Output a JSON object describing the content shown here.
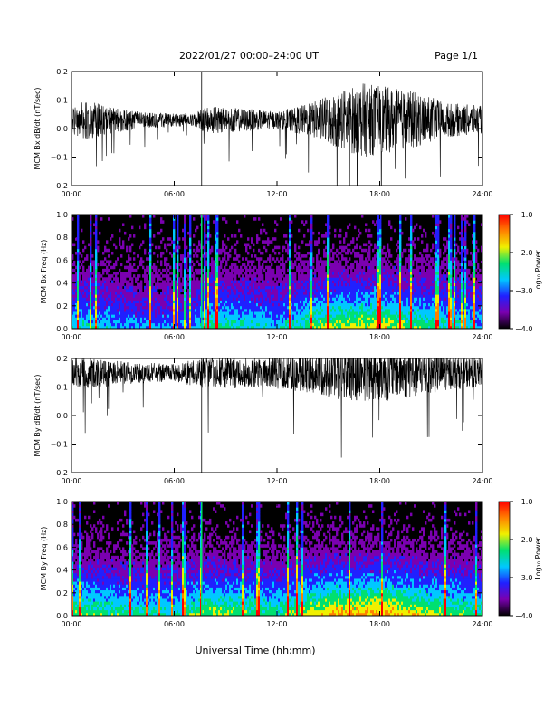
{
  "header": {
    "title": "2022/01/27  00:00–24:00 UT",
    "page": "Page 1/1"
  },
  "xlabel": "Universal Time (hh:mm)",
  "x_ticks": [
    "00:00",
    "06:00",
    "12:00",
    "18:00",
    "24:00"
  ],
  "colorbar": {
    "label": "Log₁₀ Power",
    "ticks": [
      "−1.0",
      "−2.0",
      "−3.0",
      "−4.0"
    ],
    "range": [
      -4.0,
      -1.0
    ],
    "colors": [
      "#000000",
      "#7a00b0",
      "#2020ff",
      "#00c8ff",
      "#00e070",
      "#f0f000",
      "#ff8000",
      "#ff0000"
    ]
  },
  "chart_data": [
    {
      "type": "line",
      "name": "MCM Bx dB/dt",
      "ylabel": "MCM Bx dB/dt (nT/sec)",
      "y_ticks": [
        "0.2",
        "0.1",
        "0.0",
        "−0.1",
        "−0.2"
      ],
      "ylim": [
        -0.2,
        0.2
      ],
      "xlim_hours": [
        0,
        24
      ],
      "baseline": 0.03,
      "spike_hour": 7.6,
      "envelope": [
        {
          "hour": 0,
          "amp": 0.05
        },
        {
          "hour": 1,
          "amp": 0.07
        },
        {
          "hour": 2,
          "amp": 0.05
        },
        {
          "hour": 4,
          "amp": 0.03
        },
        {
          "hour": 7,
          "amp": 0.02
        },
        {
          "hour": 8,
          "amp": 0.05
        },
        {
          "hour": 10,
          "amp": 0.04
        },
        {
          "hour": 12,
          "amp": 0.03
        },
        {
          "hour": 14,
          "amp": 0.06
        },
        {
          "hour": 15.5,
          "amp": 0.1
        },
        {
          "hour": 17,
          "amp": 0.13
        },
        {
          "hour": 18,
          "amp": 0.12
        },
        {
          "hour": 20,
          "amp": 0.1
        },
        {
          "hour": 22,
          "amp": 0.06
        },
        {
          "hour": 24,
          "amp": 0.05
        }
      ]
    },
    {
      "type": "heatmap",
      "name": "MCM Bx Freq",
      "ylabel": "MCM Bx Freq (Hz)",
      "y_ticks": [
        "1.0",
        "0.8",
        "0.6",
        "0.4",
        "0.2",
        "0.0"
      ],
      "ylim": [
        0,
        1.0
      ],
      "xlim_hours": [
        0,
        24
      ],
      "zlim": [
        -4.0,
        -1.0
      ],
      "activity": [
        {
          "hour": 0,
          "level": 0.45
        },
        {
          "hour": 3,
          "level": 0.35
        },
        {
          "hour": 7,
          "level": 0.3
        },
        {
          "hour": 8,
          "level": 0.5
        },
        {
          "hour": 12,
          "level": 0.4
        },
        {
          "hour": 15,
          "level": 0.6
        },
        {
          "hour": 18,
          "level": 0.65
        },
        {
          "hour": 21,
          "level": 0.5
        },
        {
          "hour": 24,
          "level": 0.4
        }
      ]
    },
    {
      "type": "line",
      "name": "MCM By dB/dt",
      "ylabel": "MCM By dB/dt (nT/sec)",
      "y_ticks": [
        "0.2",
        "0.1",
        "0.0",
        "−0.1",
        "−0.2"
      ],
      "ylim": [
        -0.2,
        0.2
      ],
      "xlim_hours": [
        0,
        24
      ],
      "baseline": 0.15,
      "spike_hour": 7.6,
      "envelope": [
        {
          "hour": 0,
          "amp": 0.05
        },
        {
          "hour": 1,
          "amp": 0.06
        },
        {
          "hour": 3,
          "amp": 0.04
        },
        {
          "hour": 6,
          "amp": 0.03
        },
        {
          "hour": 8,
          "amp": 0.06
        },
        {
          "hour": 11,
          "amp": 0.05
        },
        {
          "hour": 14,
          "amp": 0.07
        },
        {
          "hour": 16,
          "amp": 0.1
        },
        {
          "hour": 18,
          "amp": 0.1
        },
        {
          "hour": 20,
          "amp": 0.09
        },
        {
          "hour": 22,
          "amp": 0.06
        },
        {
          "hour": 24,
          "amp": 0.05
        }
      ]
    },
    {
      "type": "heatmap",
      "name": "MCM By Freq",
      "ylabel": "MCM By Freq (Hz)",
      "y_ticks": [
        "1.0",
        "0.8",
        "0.6",
        "0.4",
        "0.2",
        "0.0"
      ],
      "ylim": [
        0,
        1.0
      ],
      "xlim_hours": [
        0,
        24
      ],
      "zlim": [
        -4.0,
        -1.0
      ],
      "activity": [
        {
          "hour": 0,
          "level": 0.55
        },
        {
          "hour": 3,
          "level": 0.5
        },
        {
          "hour": 6,
          "level": 0.45
        },
        {
          "hour": 8,
          "level": 0.6
        },
        {
          "hour": 12,
          "level": 0.5
        },
        {
          "hour": 15,
          "level": 0.7
        },
        {
          "hour": 18,
          "level": 0.75
        },
        {
          "hour": 21,
          "level": 0.6
        },
        {
          "hour": 24,
          "level": 0.5
        }
      ]
    }
  ]
}
